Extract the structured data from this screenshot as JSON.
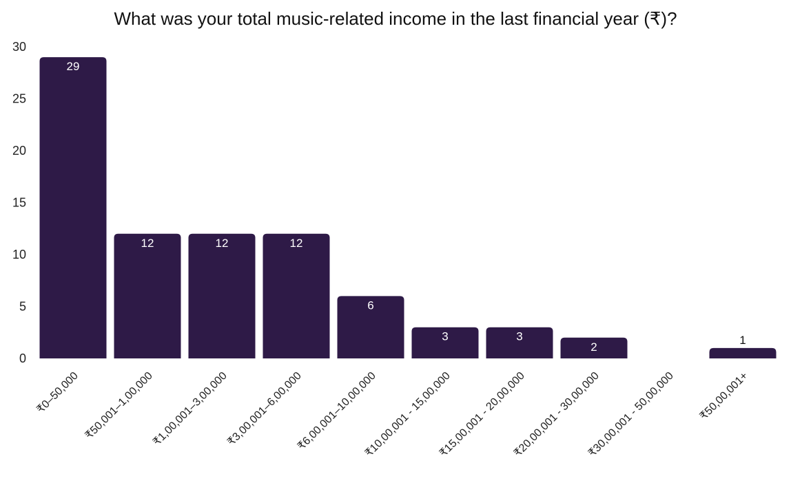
{
  "chart_data": {
    "type": "bar",
    "title": "What was your total music-related income in the last financial year (₹)?",
    "xlabel": "",
    "ylabel": "",
    "ylim": [
      0,
      30
    ],
    "yticks": [
      0,
      5,
      10,
      15,
      20,
      25,
      30
    ],
    "grid": false,
    "legend": "none",
    "bar_color": "#2e1a47",
    "label_color_inside": "#ffffff",
    "label_color_outside": "#111111",
    "categories": [
      "₹0–50,000",
      "₹50,001–1,00,000",
      "₹1,00,001–3,00,000",
      "₹3,00,001–6,00,000",
      "₹6,00,001–10,00,000",
      "₹10,00,001 - 15,00,000",
      "₹15,00,001 - 20,00,000",
      "₹20,00,001 - 30,00,000",
      "₹30,00,001 - 50,00,000",
      "₹50,00,001+"
    ],
    "values": [
      29,
      12,
      12,
      12,
      6,
      3,
      3,
      2,
      0,
      1
    ],
    "data_labels": [
      "29",
      "12",
      "12",
      "12",
      "6",
      "3",
      "3",
      "2",
      "",
      "1"
    ]
  }
}
